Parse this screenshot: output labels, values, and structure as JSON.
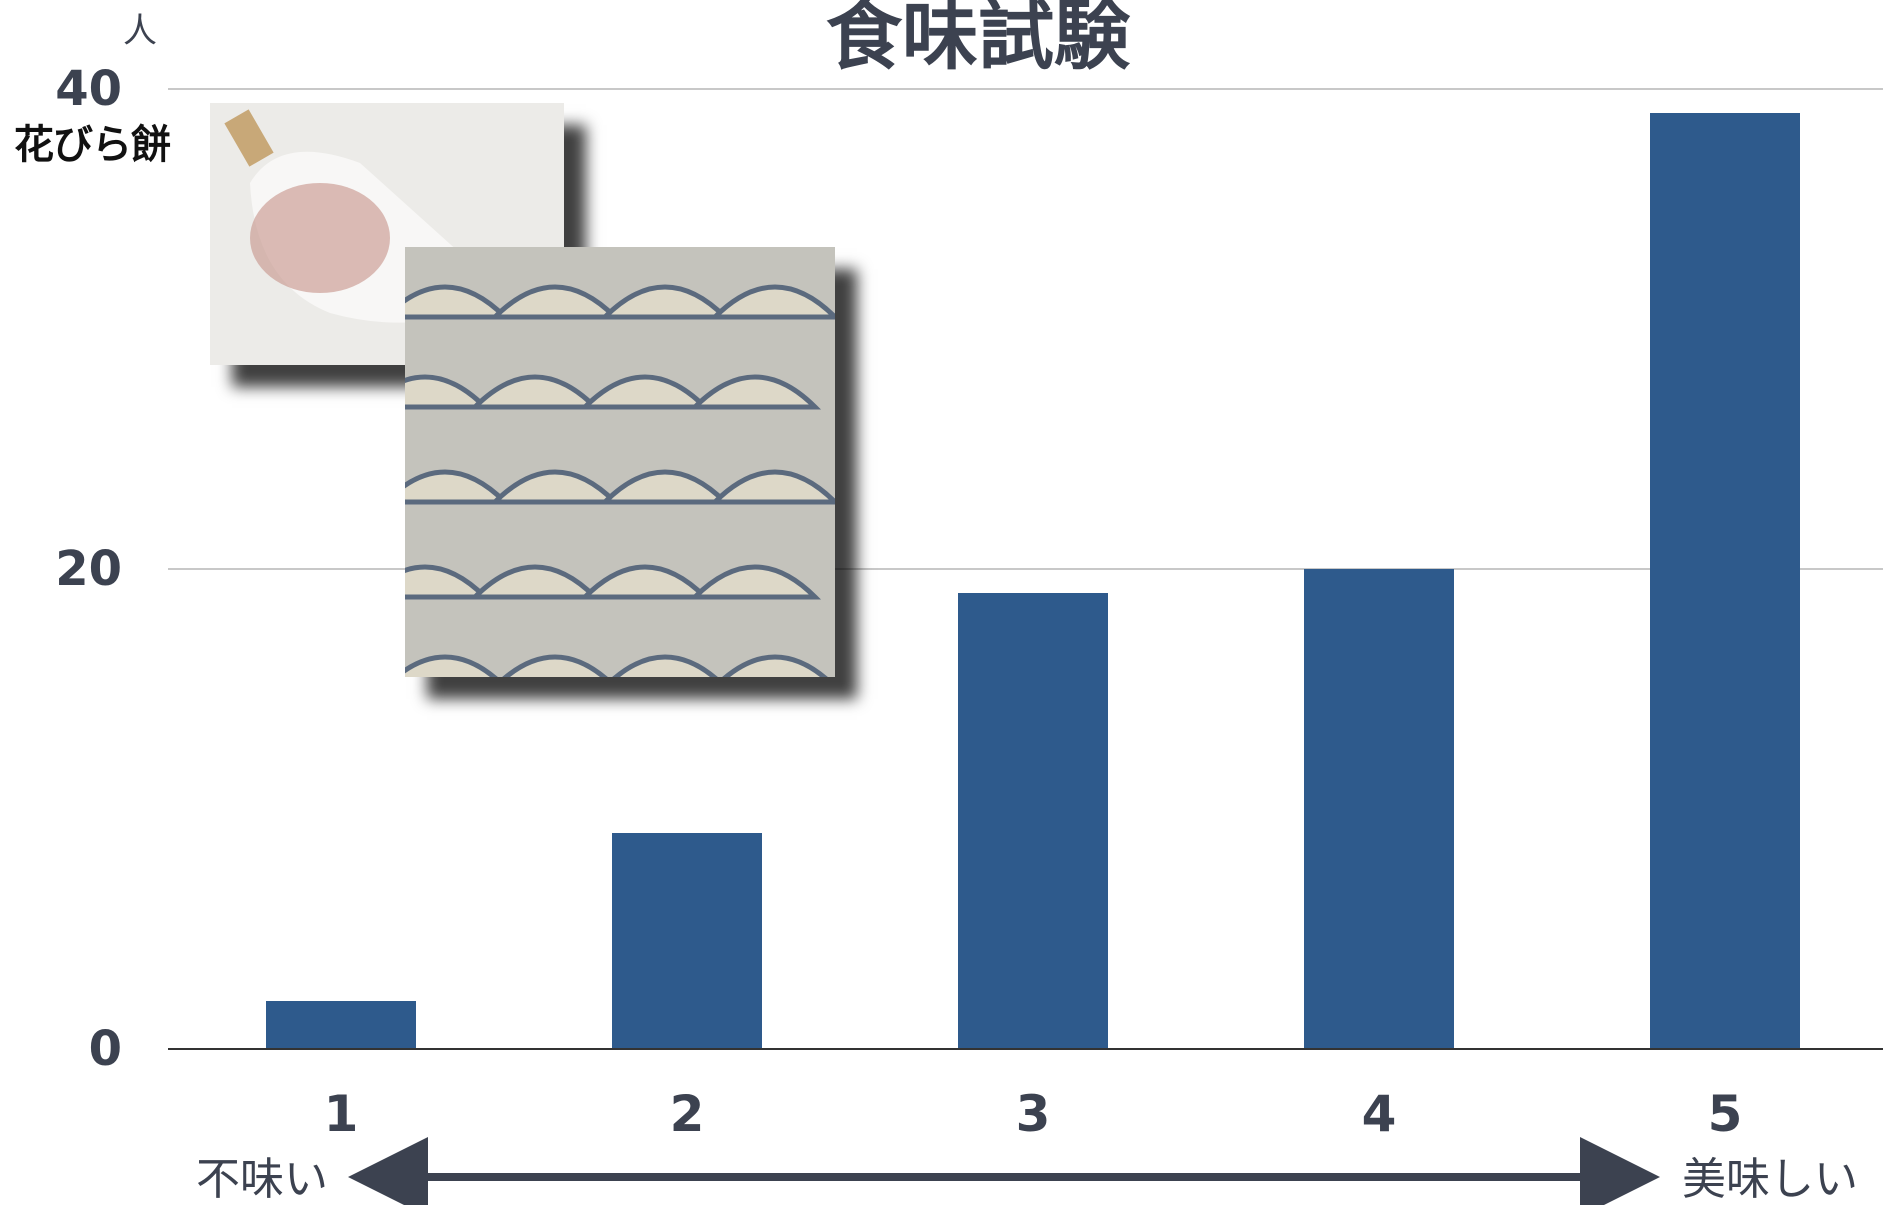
{
  "chart_data": {
    "type": "bar",
    "title": "食味試験",
    "ylabel": "人",
    "categories": [
      "1",
      "2",
      "3",
      "4",
      "5"
    ],
    "values": [
      2,
      9,
      19,
      20,
      39
    ],
    "ylim": [
      0,
      40
    ],
    "yticks": [
      0,
      20,
      40
    ],
    "grid": true,
    "scale_low_label": "不味い",
    "scale_high_label": "美味しい"
  },
  "photo_caption": "花びら餅",
  "colors": {
    "bar": "#2e5a8c",
    "axis_text": "#3c4250",
    "grid": "#c8c8c8",
    "arrow": "#3c4250"
  },
  "images": [
    "hanabira-mochi-photo",
    "hanabira-mochi-tray-photo"
  ]
}
